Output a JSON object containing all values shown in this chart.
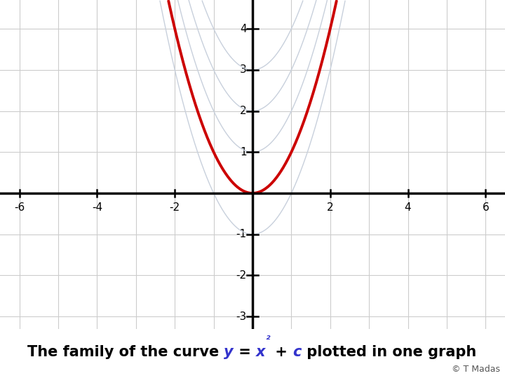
{
  "xlim": [
    -6.5,
    6.5
  ],
  "ylim": [
    -3.3,
    4.7
  ],
  "xticks": [
    -6,
    -4,
    -2,
    2,
    4,
    6
  ],
  "yticks": [
    -3,
    -2,
    -1,
    1,
    2,
    3,
    4
  ],
  "background_color": "#ffffff",
  "grid_color": "#cccccc",
  "axis_color": "#000000",
  "main_curve_c": 0,
  "main_curve_color": "#cc0000",
  "main_curve_lw": 2.8,
  "ghost_curves_c": [
    1,
    2,
    3,
    -1
  ],
  "ghost_curve_color": "#c8d0dc",
  "ghost_curve_lw": 1.0,
  "footer_bg": "#ffff00",
  "footer_text_color": "#000000",
  "footer_blue_color": "#3333cc",
  "copyright_text": "© T Madas",
  "copyright_color": "#555555"
}
